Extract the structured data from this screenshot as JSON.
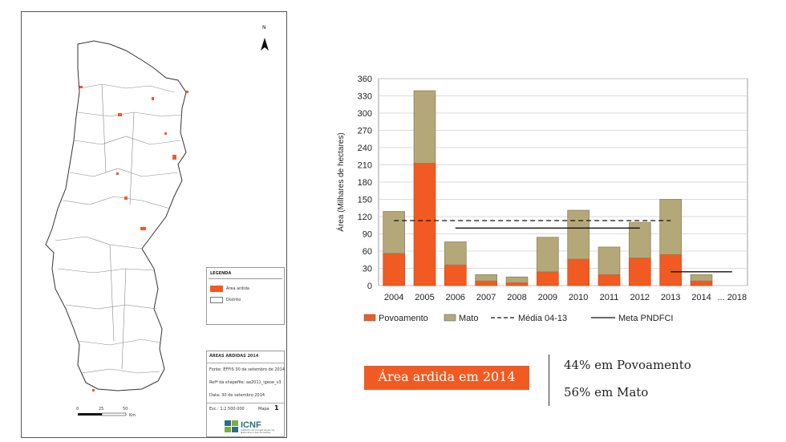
{
  "map": {
    "north_label": "N",
    "legend": {
      "title": "LEGENDA",
      "items": [
        {
          "label": "Área ardida",
          "color": "#f15a22"
        },
        {
          "label": "Distrito",
          "color": "#ffffff"
        }
      ]
    },
    "info": {
      "title": "ÁREAS ARDIDAS 2014",
      "source": "Fonte: EFFIS 30 de setembro de 2014",
      "shapefile": "Refª da shapefile: aa2011_igeoe_v3",
      "date": "Data: 30 de setembro 2014",
      "scale": "Esc.: 1:2.500.000",
      "mapa_label": "Mapa",
      "mapa_number": "1",
      "logo": "ICNF",
      "logo_sub": "Instituto da Conservação da Natureza e das Florestas"
    },
    "scale_bar": {
      "ticks": [
        "0",
        "25",
        "50"
      ],
      "unit": "Km"
    }
  },
  "chart_data": {
    "type": "bar",
    "stacked": true,
    "categories": [
      "2004",
      "2005",
      "2006",
      "2007",
      "2008",
      "2009",
      "2010",
      "2011",
      "2012",
      "2013",
      "2014",
      "... 2018"
    ],
    "series": [
      {
        "name": "Povoamento",
        "color": "#f15a22",
        "values": [
          56,
          213,
          36,
          8,
          5,
          24,
          46,
          19,
          48,
          54,
          8,
          null
        ]
      },
      {
        "name": "Mato",
        "color": "#b5a878",
        "values": [
          73,
          126,
          40,
          11,
          10,
          60,
          85,
          48,
          62,
          96,
          11,
          null
        ]
      }
    ],
    "lines": [
      {
        "name": "Média 04-13",
        "style": "dashed",
        "y": 113,
        "x_from": "2004",
        "x_to": "2013"
      },
      {
        "name": "Meta PNDFCI",
        "style": "solid",
        "segments": [
          {
            "y": 100,
            "x_from": "2006",
            "x_to": "2012"
          },
          {
            "y": 24,
            "x_from": "2013",
            "x_to": "... 2018"
          }
        ]
      }
    ],
    "ylabel": "Área (Milhares de hectares)",
    "xlabel": "",
    "ylim": [
      0,
      360
    ],
    "yticks": [
      0,
      30,
      60,
      90,
      120,
      150,
      180,
      210,
      240,
      270,
      300,
      330,
      360
    ],
    "grid": true,
    "legend_position": "bottom"
  },
  "caption": "Área ardida em 2014",
  "stats": [
    "44% em Povoamento",
    "56% em Mato"
  ]
}
